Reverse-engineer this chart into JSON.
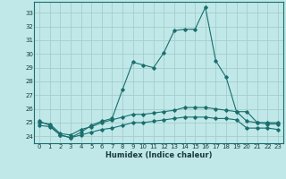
{
  "xlabel": "Humidex (Indice chaleur)",
  "background_color": "#c0e8e8",
  "grid_color": "#a8cccc",
  "line_color": "#1a6e6e",
  "xlim": [
    -0.5,
    23.5
  ],
  "ylim": [
    23.5,
    33.8
  ],
  "yticks": [
    24,
    25,
    26,
    27,
    28,
    29,
    30,
    31,
    32,
    33
  ],
  "xticks": [
    0,
    1,
    2,
    3,
    4,
    5,
    6,
    7,
    8,
    9,
    10,
    11,
    12,
    13,
    14,
    15,
    16,
    17,
    18,
    19,
    20,
    21,
    22,
    23
  ],
  "series": [
    {
      "x": [
        0,
        1,
        2,
        3,
        4,
        5,
        6,
        7,
        8,
        9,
        10,
        11,
        12,
        13,
        14,
        15,
        16,
        17,
        18,
        19,
        20,
        21,
        22,
        23
      ],
      "y": [
        25.1,
        24.8,
        24.1,
        23.9,
        24.3,
        24.8,
        25.1,
        25.3,
        27.4,
        29.4,
        29.2,
        29.0,
        30.1,
        31.7,
        31.8,
        31.8,
        33.4,
        29.5,
        28.3,
        25.8,
        25.8,
        25.0,
        24.9,
        24.9
      ]
    },
    {
      "x": [
        0,
        1,
        2,
        3,
        4,
        5,
        6,
        7,
        8,
        9,
        10,
        11,
        12,
        13,
        14,
        15,
        16,
        17,
        18,
        19,
        20,
        21,
        22,
        23
      ],
      "y": [
        25.0,
        24.9,
        24.2,
        24.1,
        24.5,
        24.7,
        25.0,
        25.2,
        25.4,
        25.6,
        25.6,
        25.7,
        25.8,
        25.9,
        26.1,
        26.1,
        26.1,
        26.0,
        25.9,
        25.8,
        25.1,
        25.0,
        25.0,
        25.0
      ]
    },
    {
      "x": [
        0,
        1,
        2,
        3,
        4,
        5,
        6,
        7,
        8,
        9,
        10,
        11,
        12,
        13,
        14,
        15,
        16,
        17,
        18,
        19,
        20,
        21,
        22,
        23
      ],
      "y": [
        24.8,
        24.7,
        24.1,
        23.9,
        24.1,
        24.3,
        24.5,
        24.6,
        24.8,
        25.0,
        25.0,
        25.1,
        25.2,
        25.3,
        25.4,
        25.4,
        25.4,
        25.3,
        25.3,
        25.2,
        24.6,
        24.6,
        24.6,
        24.5
      ]
    }
  ]
}
